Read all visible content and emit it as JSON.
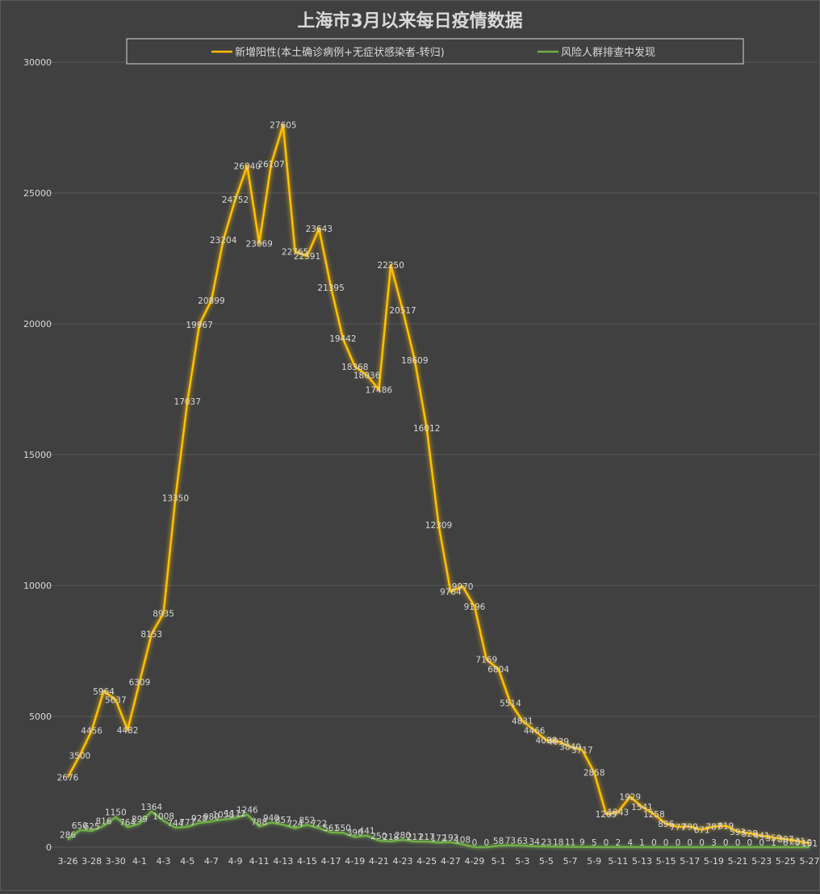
{
  "colors": {
    "background": "#404040",
    "gridline": "#595959",
    "axis_text": "#d9d9d9",
    "title_text": "#d9d9d9",
    "series_positive": "#ffc000",
    "series_risk": "#70ad47",
    "legend_border": "#d9d9d9"
  },
  "chart_data": {
    "type": "line",
    "title": "上海市3月以来每日疫情数据",
    "legend_position": "top",
    "grid": true,
    "ylim": [
      0,
      30000
    ],
    "y_ticks": [
      "0",
      "5000",
      "10000",
      "15000",
      "20000",
      "25000",
      "30000"
    ],
    "x": [
      "3-26",
      "3-27",
      "3-28",
      "3-29",
      "3-30",
      "3-31",
      "4-1",
      "4-2",
      "4-3",
      "4-4",
      "4-5",
      "4-6",
      "4-7",
      "4-8",
      "4-9",
      "4-10",
      "4-11",
      "4-12",
      "4-13",
      "4-14",
      "4-15",
      "4-16",
      "4-17",
      "4-18",
      "4-19",
      "4-20",
      "4-21",
      "4-22",
      "4-23",
      "4-24",
      "4-25",
      "4-26",
      "4-27",
      "4-28",
      "4-29",
      "4-30",
      "5-1",
      "5-2",
      "5-3",
      "5-4",
      "5-5",
      "5-6",
      "5-7",
      "5-8",
      "5-9",
      "5-10",
      "5-11",
      "5-12",
      "5-13",
      "5-14",
      "5-15",
      "5-16",
      "5-17",
      "5-18",
      "5-19",
      "5-20",
      "5-21",
      "5-22",
      "5-23",
      "5-24",
      "5-25",
      "5-26",
      "5-27"
    ],
    "x_tick_labels": [
      "3-26",
      "3-28",
      "3-30",
      "4-1",
      "4-3",
      "4-5",
      "4-7",
      "4-9",
      "4-11",
      "4-13",
      "4-15",
      "4-17",
      "4-19",
      "4-21",
      "4-23",
      "4-25",
      "4-27",
      "4-29",
      "5-1",
      "5-3",
      "5-5",
      "5-7",
      "5-9",
      "5-11",
      "5-13",
      "5-15",
      "5-17",
      "5-19",
      "5-21",
      "5-23",
      "5-25",
      "5-27"
    ],
    "series": [
      {
        "name": "新增阳性(本土确诊病例+无症状感染者-转归)",
        "values": [
          2676,
          3500,
          4456,
          5964,
          5637,
          4482,
          6309,
          8153,
          8935,
          13350,
          17037,
          19967,
          20899,
          23204,
          24752,
          26040,
          23069,
          26107,
          27605,
          22765,
          22591,
          23643,
          21395,
          19442,
          18368,
          18036,
          17486,
          22250,
          20517,
          18609,
          16012,
          12309,
          9764,
          9970,
          9196,
          7169,
          6804,
          5514,
          4831,
          4466,
          4088,
          4039,
          3840,
          3717,
          2858,
          1265,
          1343,
          1929,
          1541,
          1258,
          896,
          777,
          790,
          671,
          787,
          819,
          593,
          528,
          441,
          359,
          307,
          231,
          151
        ]
      },
      {
        "name": "风险人群排查中发现",
        "values": [
          286,
          650,
          625,
          816,
          1150,
          764,
          899,
          1364,
          1008,
          744,
          777,
          928,
          980,
          1058,
          1112,
          1246,
          788,
          940,
          857,
          724,
          852,
          722,
          561,
          550,
          390,
          441,
          250,
          218,
          280,
          217,
          217,
          172,
          192,
          108,
          0,
          0,
          58,
          73,
          63,
          34,
          23,
          18,
          11,
          9,
          5,
          0,
          2,
          4,
          1,
          0,
          0,
          0,
          0,
          0,
          3,
          0,
          0,
          0,
          0,
          1,
          0,
          0,
          0
        ]
      }
    ]
  }
}
